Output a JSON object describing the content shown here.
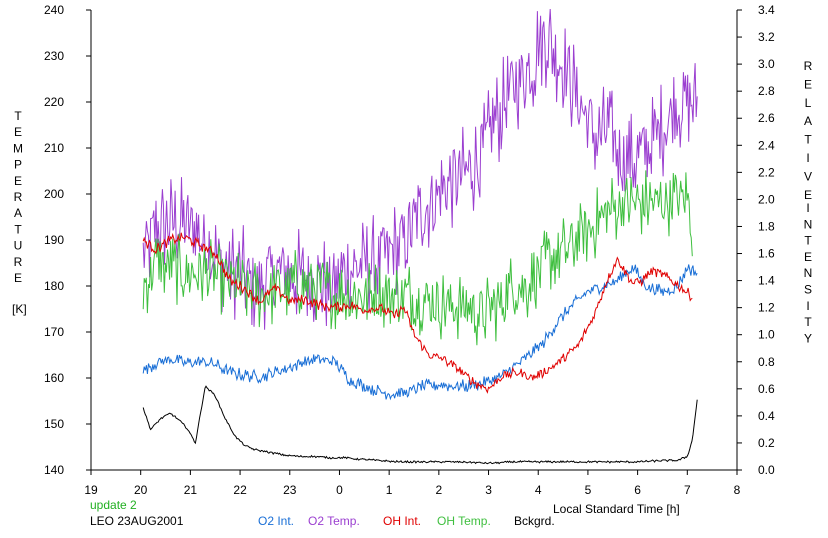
{
  "colors": {
    "o2_int": "#1a6fd6",
    "o2_temp": "#9b3fd0",
    "oh_int": "#e00000",
    "oh_temp": "#3fbf3f",
    "bckgrd": "#000000",
    "status": "#22b022",
    "axis": "#000000"
  },
  "left_axis_letters": [
    "T",
    "E",
    "M",
    "P",
    "E",
    "R",
    "A",
    "T",
    "U",
    "R",
    "E"
  ],
  "left_axis_unit": "[K]",
  "right_axis_word1": [
    "R",
    "E",
    "L",
    "A",
    "T",
    "I",
    "V",
    "E"
  ],
  "right_axis_word2": [
    "I",
    "N",
    "T",
    "E",
    "N",
    "S",
    "I",
    "T",
    "Y"
  ],
  "xlabel": "Local Standard Time [h]",
  "status_text": "update 2",
  "station_label": "LEO 23AUG2001",
  "legend": {
    "o2_int": "O2 Int.",
    "o2_temp": "O2 Temp.",
    "oh_int": "OH Int.",
    "oh_temp": "OH Temp.",
    "bckgrd": "Bckgrd."
  },
  "chart_data": {
    "type": "line",
    "title": "",
    "xlabel": "Local Standard Time [h]",
    "ylabel": "TEMPERATURE [K]",
    "y2label": "RELATIVE INTENSITY",
    "xlim": [
      19,
      32
    ],
    "x_ticks": [
      19,
      20,
      21,
      22,
      23,
      24,
      25,
      26,
      27,
      28,
      29,
      30,
      31,
      32
    ],
    "x_tick_labels": [
      "19",
      "20",
      "21",
      "22",
      "23",
      "0",
      "1",
      "2",
      "3",
      "4",
      "5",
      "6",
      "7",
      "8"
    ],
    "ylim": [
      140,
      240
    ],
    "y_ticks": [
      140,
      150,
      160,
      170,
      180,
      190,
      200,
      210,
      220,
      230,
      240
    ],
    "y2lim": [
      0.0,
      3.4
    ],
    "y2_ticks": [
      "0.0",
      "0.2",
      "0.4",
      "0.6",
      "0.8",
      "1.0",
      "1.2",
      "1.4",
      "1.6",
      "1.8",
      "2.0",
      "2.2",
      "2.4",
      "2.6",
      "2.8",
      "3.0",
      "3.2",
      "3.4"
    ],
    "grid": false,
    "legend_position": "bottom",
    "series": [
      {
        "name": "O2 Temp.",
        "axis": "left",
        "noise": 11,
        "x": [
          20.05,
          20.3,
          20.6,
          20.9,
          21.1,
          21.4,
          21.7,
          22.0,
          22.3,
          22.6,
          22.9,
          23.2,
          23.5,
          23.8,
          24.1,
          24.4,
          24.7,
          25.0,
          25.3,
          25.5,
          25.7,
          26.0,
          26.3,
          26.6,
          26.9,
          27.1,
          27.3,
          27.5,
          27.7,
          27.9,
          28.0,
          28.2,
          28.4,
          28.6,
          28.8,
          29.0,
          29.2,
          29.4,
          29.6,
          29.8,
          30.0,
          30.2,
          30.4,
          30.6,
          30.8,
          31.0,
          31.2
        ],
        "values": [
          186,
          192,
          194,
          193,
          192,
          188,
          184,
          183,
          180,
          182,
          183,
          182,
          181,
          180,
          183,
          184,
          185,
          187,
          190,
          193,
          197,
          200,
          203,
          205,
          209,
          215,
          219,
          223,
          226,
          228,
          233,
          234,
          230,
          226,
          221,
          216,
          212,
          214,
          210,
          207,
          208,
          209,
          213,
          216,
          219,
          221,
          219
        ]
      },
      {
        "name": "OH Temp.",
        "axis": "left",
        "noise": 8,
        "x": [
          20.05,
          20.3,
          20.6,
          20.9,
          21.2,
          21.5,
          21.8,
          22.1,
          22.4,
          22.7,
          23.0,
          23.3,
          23.6,
          23.9,
          24.2,
          24.5,
          24.8,
          25.1,
          25.4,
          25.7,
          26.0,
          26.3,
          26.6,
          26.9,
          27.2,
          27.5,
          27.8,
          28.0,
          28.3,
          28.6,
          28.9,
          29.2,
          29.5,
          29.8,
          30.1,
          30.4,
          30.7,
          31.0,
          31.1
        ],
        "values": [
          180,
          185,
          184,
          183,
          183,
          182,
          181,
          179,
          178,
          179,
          180,
          181,
          180,
          178,
          178,
          178,
          178,
          178,
          178,
          177,
          176,
          176,
          175,
          174,
          176,
          180,
          180,
          183,
          187,
          188,
          191,
          194,
          197,
          198,
          198,
          198,
          199,
          199,
          193
        ]
      },
      {
        "name": "O2 Int.",
        "axis": "right",
        "noise": 0.05,
        "x": [
          20.05,
          20.3,
          20.6,
          20.9,
          21.2,
          21.5,
          21.8,
          22.1,
          22.4,
          22.7,
          23.0,
          23.3,
          23.6,
          23.9,
          24.2,
          24.5,
          24.8,
          25.1,
          25.4,
          25.7,
          26.0,
          26.3,
          26.6,
          26.9,
          27.2,
          27.5,
          27.8,
          28.1,
          28.4,
          28.7,
          29.0,
          29.3,
          29.6,
          29.9,
          30.2,
          30.5,
          30.8,
          31.0,
          31.2
        ],
        "values": [
          0.74,
          0.79,
          0.82,
          0.79,
          0.8,
          0.78,
          0.72,
          0.7,
          0.69,
          0.72,
          0.76,
          0.8,
          0.82,
          0.8,
          0.67,
          0.62,
          0.58,
          0.56,
          0.58,
          0.62,
          0.63,
          0.62,
          0.62,
          0.64,
          0.68,
          0.76,
          0.84,
          0.94,
          1.1,
          1.22,
          1.32,
          1.36,
          1.4,
          1.5,
          1.35,
          1.32,
          1.35,
          1.5,
          1.45
        ]
      },
      {
        "name": "OH Int.",
        "axis": "right",
        "noise": 0.04,
        "x": [
          20.05,
          20.3,
          20.6,
          20.9,
          21.2,
          21.5,
          21.8,
          22.1,
          22.4,
          22.7,
          23.0,
          23.3,
          23.6,
          23.9,
          24.2,
          24.5,
          24.8,
          25.1,
          25.3,
          25.5,
          25.8,
          26.1,
          26.4,
          26.7,
          27.0,
          27.3,
          27.6,
          27.9,
          28.2,
          28.5,
          28.8,
          29.1,
          29.4,
          29.6,
          29.9,
          30.1,
          30.3,
          30.6,
          30.9,
          31.1
        ],
        "values": [
          1.7,
          1.63,
          1.7,
          1.72,
          1.66,
          1.6,
          1.4,
          1.34,
          1.24,
          1.35,
          1.25,
          1.26,
          1.22,
          1.2,
          1.22,
          1.18,
          1.2,
          1.14,
          1.2,
          1.0,
          0.85,
          0.82,
          0.74,
          0.65,
          0.6,
          0.7,
          0.72,
          0.68,
          0.74,
          0.82,
          0.92,
          1.12,
          1.42,
          1.56,
          1.38,
          1.4,
          1.48,
          1.42,
          1.34,
          1.28
        ]
      },
      {
        "name": "Bckgrd.",
        "axis": "right",
        "noise": 0.008,
        "x": [
          20.05,
          20.2,
          20.4,
          20.6,
          20.8,
          20.95,
          21.1,
          21.3,
          21.5,
          21.7,
          21.9,
          22.1,
          22.3,
          22.6,
          22.9,
          23.2,
          23.5,
          23.8,
          24.1,
          24.4,
          24.8,
          25.2,
          25.6,
          26.0,
          26.5,
          27.0,
          27.5,
          28.0,
          28.5,
          29.0,
          29.5,
          30.0,
          30.5,
          30.8,
          31.0,
          31.1,
          31.2
        ],
        "values": [
          0.46,
          0.3,
          0.38,
          0.42,
          0.36,
          0.3,
          0.2,
          0.62,
          0.55,
          0.38,
          0.25,
          0.18,
          0.15,
          0.13,
          0.11,
          0.1,
          0.1,
          0.09,
          0.09,
          0.08,
          0.07,
          0.06,
          0.06,
          0.06,
          0.06,
          0.05,
          0.06,
          0.06,
          0.06,
          0.06,
          0.06,
          0.06,
          0.07,
          0.07,
          0.1,
          0.22,
          0.52
        ]
      }
    ]
  }
}
